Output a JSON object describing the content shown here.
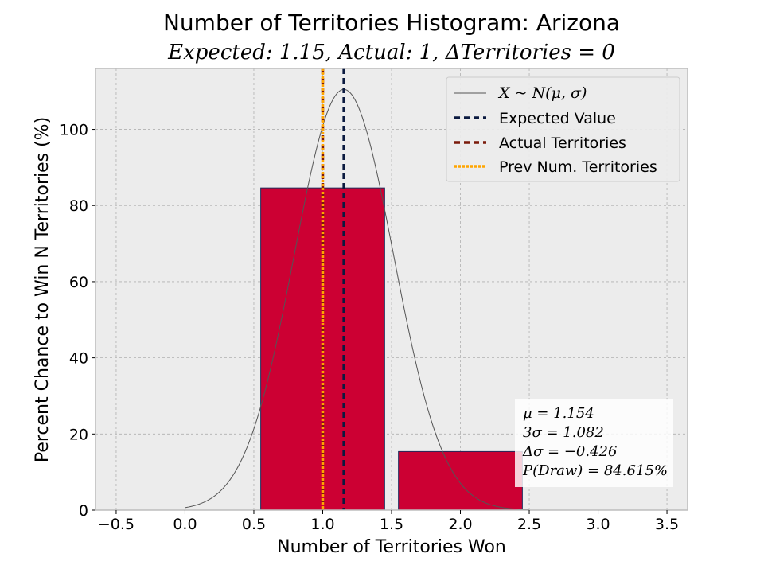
{
  "chart_data": {
    "type": "bar",
    "title": "Number of Territories Histogram: Arizona",
    "subtitle": "Expected: 1.15, Actual: 1, ΔTerritories = 0",
    "xlabel": "Number of Territories Won",
    "ylabel": "Percent Chance to Win N Territories (%)",
    "xlim": [
      -0.65,
      3.65
    ],
    "ylim": [
      0,
      116
    ],
    "x_ticks": [
      -0.5,
      0.0,
      0.5,
      1.0,
      1.5,
      2.0,
      2.5,
      3.0,
      3.5
    ],
    "x_tick_labels": [
      "−0.5",
      "0.0",
      "0.5",
      "1.0",
      "1.5",
      "2.0",
      "2.5",
      "3.0",
      "3.5"
    ],
    "y_ticks": [
      0,
      20,
      40,
      60,
      80,
      100
    ],
    "y_tick_labels": [
      "0",
      "20",
      "40",
      "60",
      "80",
      "100"
    ],
    "grid": true,
    "bars": {
      "x": [
        1,
        2
      ],
      "values": [
        84.615,
        15.385
      ],
      "width": 0.9,
      "color": "#cc0033",
      "edge_color": "#1f2a5a"
    },
    "normal_curve": {
      "label": "X ~ N(μ, σ)",
      "mu": 1.154,
      "sigma": 0.3607,
      "peak": 110.5,
      "x_range": [
        0.0,
        2.5
      ],
      "color": "#555555"
    },
    "vlines": [
      {
        "label": "Expected Value",
        "x": 1.154,
        "color": "#0b1a40",
        "style": "dashed"
      },
      {
        "label": "Actual Territories",
        "x": 1.0,
        "color": "#7a1a0a",
        "style": "dashed"
      },
      {
        "label": "Prev Num. Territories",
        "x": 1.0,
        "color": "#ffa500",
        "style": "dotted"
      }
    ],
    "legend_placement": "top-right",
    "stats_box": {
      "placement": "bottom-right",
      "lines": [
        "μ = 1.154",
        "3σ = 1.082",
        "Δσ = −0.426",
        "P(Draw) = 84.615%"
      ]
    },
    "colors": {
      "plot_bg": "#ececec",
      "grid": "#b0b0b0",
      "frame": "#bdbdbd"
    }
  }
}
